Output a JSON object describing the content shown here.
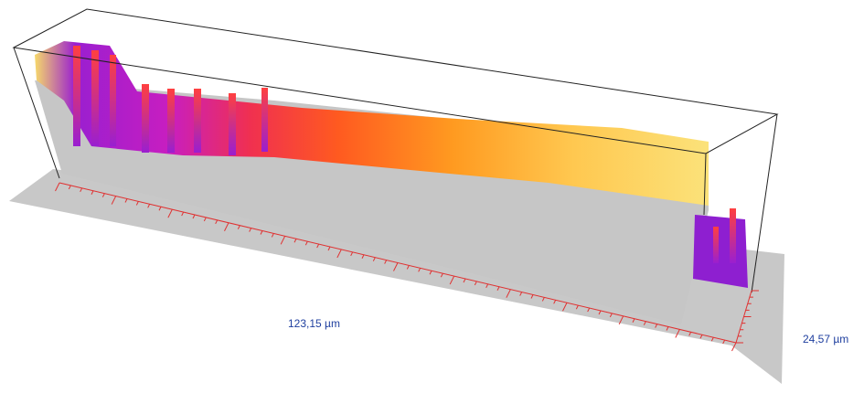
{
  "labels": {
    "length": "123,15 µm",
    "width": "24,57 µm"
  }
}
